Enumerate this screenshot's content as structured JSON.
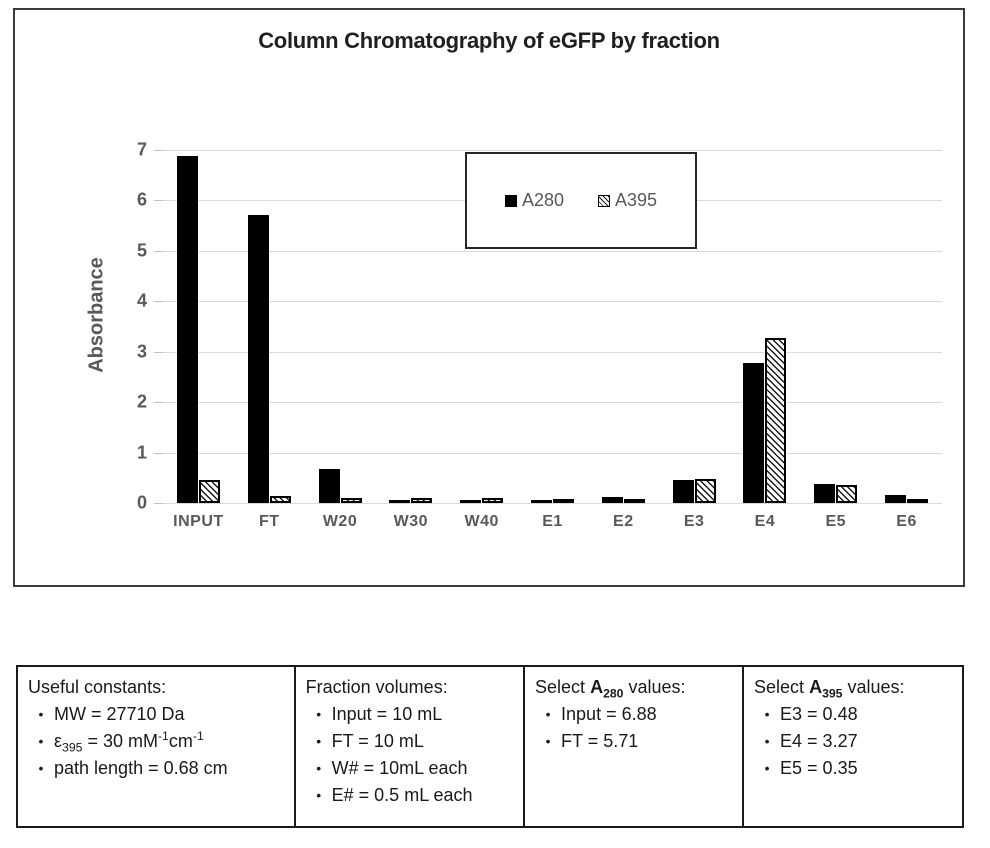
{
  "chart": {
    "title": "Column Chromatography of eGFP by fraction",
    "y_axis_label": "Absorbance",
    "chart_data": {
      "type": "bar",
      "title": "Column Chromatography of eGFP by fraction",
      "xlabel": "",
      "ylabel": "Absorbance",
      "ylim": [
        0,
        7
      ],
      "y_ticks": [
        0,
        1,
        2,
        3,
        4,
        5,
        6,
        7
      ],
      "grid": true,
      "legend_position": "inside-top-center",
      "categories": [
        "INPUT",
        "FT",
        "W20",
        "W30",
        "W40",
        "E1",
        "E2",
        "E3",
        "E4",
        "E5",
        "E6"
      ],
      "series": [
        {
          "name": "A280",
          "pattern": "solid",
          "color": "#000000",
          "values": [
            6.88,
            5.71,
            0.68,
            0.05,
            0.06,
            0.06,
            0.12,
            0.45,
            2.77,
            0.37,
            0.16
          ]
        },
        {
          "name": "A395",
          "pattern": "hatch",
          "color": "#ffffff",
          "values": [
            0.45,
            0.13,
            0.09,
            0.09,
            0.09,
            0.08,
            0.08,
            0.48,
            3.27,
            0.35,
            0.04
          ]
        }
      ]
    }
  },
  "info_table": {
    "columns": [
      {
        "header": [
          {
            "t": "Useful constants:"
          }
        ],
        "items": [
          [
            {
              "t": "MW = 27710 Da"
            }
          ],
          [
            {
              "t": "ε"
            },
            {
              "t": "395",
              "sub": true
            },
            {
              "t": " = 30 mM"
            },
            {
              "t": "-1",
              "sup": true
            },
            {
              "t": "cm"
            },
            {
              "t": "-1",
              "sup": true
            }
          ],
          [
            {
              "t": "path length = 0.68 cm"
            }
          ]
        ]
      },
      {
        "header": [
          {
            "t": "Fraction volumes:"
          }
        ],
        "items": [
          [
            {
              "t": "Input = 10 mL"
            }
          ],
          [
            {
              "t": "FT = 10 mL"
            }
          ],
          [
            {
              "t": "W# = 10mL each"
            }
          ],
          [
            {
              "t": "E# = 0.5 mL each"
            }
          ]
        ]
      },
      {
        "header": [
          {
            "t": "Select "
          },
          {
            "t": "A",
            "b": true
          },
          {
            "t": "280",
            "b": true,
            "sub": true
          },
          {
            "t": " values:"
          }
        ],
        "items": [
          [
            {
              "t": "Input = 6.88"
            }
          ],
          [
            {
              "t": "FT = 5.71"
            }
          ]
        ]
      },
      {
        "header": [
          {
            "t": "Select "
          },
          {
            "t": "A",
            "b": true
          },
          {
            "t": "395",
            "b": true,
            "sub": true
          },
          {
            "t": " values:"
          }
        ],
        "items": [
          [
            {
              "t": "E3 = 0.48"
            }
          ],
          [
            {
              "t": "E4 = 3.27"
            }
          ],
          [
            {
              "t": "E5 = 0.35"
            }
          ]
        ]
      }
    ]
  },
  "colors": {
    "bar_solid": "#000000",
    "axis_text": "#595959",
    "gridline": "#d9d9d9",
    "title_text": "#1f1f1f",
    "panel_border": "#3a3a3a"
  }
}
